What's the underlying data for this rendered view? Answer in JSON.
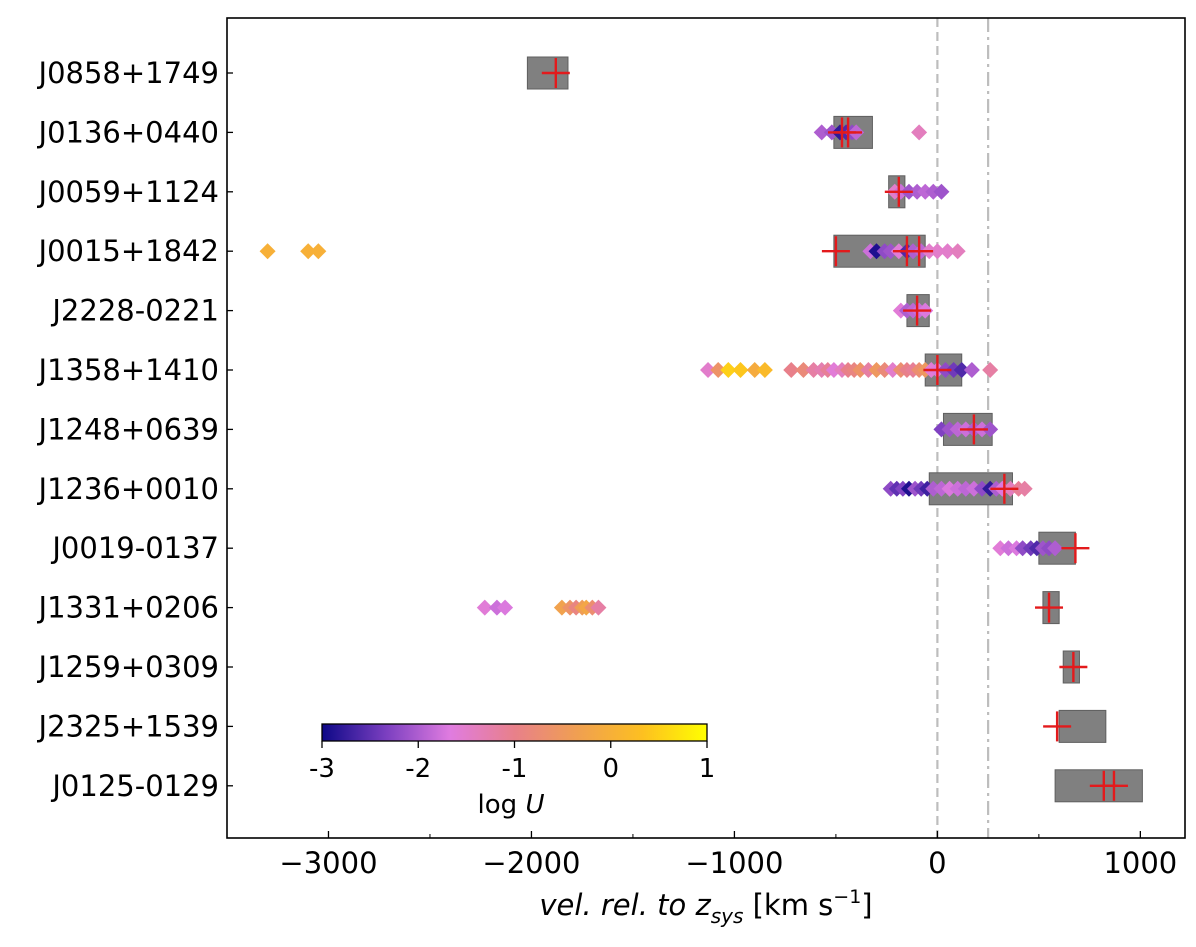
{
  "chart_data": {
    "type": "scatter",
    "xlabel_italic": "vel. rel. to z",
    "xlabel_sub": "sys",
    "xlabel_unit_pre": " [km s",
    "xlabel_unit_sup": "−1",
    "xlabel_unit_post": "]",
    "xlim": [
      -3500,
      1220
    ],
    "x_ticks": [
      -3000,
      -2000,
      -1000,
      0,
      1000
    ],
    "x_tick_labels": [
      "−3000",
      "−2000",
      "−1000",
      "0",
      "1000"
    ],
    "reference_lines": [
      {
        "x": 0,
        "style": "dashed",
        "color": "#bdbdbd"
      },
      {
        "x": 250,
        "style": "dashdot",
        "color": "#bdbdbd"
      }
    ],
    "colorbar": {
      "label_text": "log ",
      "label_var": "U",
      "range": [
        -3,
        1
      ],
      "ticks": [
        -3,
        -2,
        -1,
        0,
        1
      ],
      "tick_labels": [
        "-3",
        "-2",
        "-1",
        "0",
        "1"
      ],
      "gradient": [
        "#0d0887",
        "#7b3fc0",
        "#e07ce0",
        "#e8808a",
        "#f0a050",
        "#fdc020",
        "#ffff00"
      ]
    },
    "colors": {
      "box": "#808080",
      "box_edge": "#5f5f5f",
      "cross": "#e31a1c"
    },
    "objects": [
      {
        "name": "J0858+1749",
        "box": [
          -2020,
          -1820
        ],
        "crosses": [
          -1880
        ],
        "points": []
      },
      {
        "name": "J0136+0440",
        "box": [
          -510,
          -320
        ],
        "crosses": [
          -470,
          -440
        ],
        "points": [
          [
            -570,
            -2.0
          ],
          [
            -520,
            -2.1
          ],
          [
            -480,
            -2.8
          ],
          [
            -450,
            -2.6
          ],
          [
            -420,
            -2.2
          ],
          [
            -400,
            -1.9
          ],
          [
            -90,
            -1.4
          ]
        ]
      },
      {
        "name": "J0059+1124",
        "box": [
          -240,
          -160
        ],
        "crosses": [
          -190
        ],
        "points": [
          [
            -210,
            -1.5
          ],
          [
            -180,
            -1.8
          ],
          [
            -140,
            -2.1
          ],
          [
            -100,
            -2.0
          ],
          [
            -60,
            -1.9
          ],
          [
            -20,
            -2.0
          ],
          [
            20,
            -2.1
          ]
        ]
      },
      {
        "name": "J0015+1842",
        "box": [
          -510,
          -60
        ],
        "crosses": [
          -500,
          -150,
          -90
        ],
        "points": [
          [
            -3300,
            0.0
          ],
          [
            -3100,
            0.0
          ],
          [
            -3050,
            0.0
          ],
          [
            -330,
            -1.8
          ],
          [
            -300,
            -2.9
          ],
          [
            -260,
            -2.2
          ],
          [
            -230,
            -2.1
          ],
          [
            -190,
            -1.6
          ],
          [
            -150,
            -2.6
          ],
          [
            -120,
            -2.0
          ],
          [
            -80,
            -1.9
          ],
          [
            -40,
            -1.5
          ],
          [
            0,
            -1.5
          ],
          [
            50,
            -1.5
          ],
          [
            100,
            -1.4
          ]
        ]
      },
      {
        "name": "J2228-0221",
        "box": [
          -150,
          -40
        ],
        "crosses": [
          -100
        ],
        "points": [
          [
            -180,
            -1.6
          ],
          [
            -150,
            -2.0
          ],
          [
            -120,
            -1.9
          ],
          [
            -90,
            -1.8
          ],
          [
            -60,
            -1.7
          ]
        ]
      },
      {
        "name": "J1358+1410",
        "box": [
          -60,
          120
        ],
        "crosses": [
          0
        ],
        "points": [
          [
            -1130,
            -1.5
          ],
          [
            -1080,
            -0.6
          ],
          [
            -1030,
            0.5
          ],
          [
            -970,
            0.4
          ],
          [
            -900,
            -0.1
          ],
          [
            -850,
            0.2
          ],
          [
            -720,
            -1.0
          ],
          [
            -660,
            -0.8
          ],
          [
            -610,
            -1.2
          ],
          [
            -570,
            -1.3
          ],
          [
            -540,
            -1.1
          ],
          [
            -510,
            -1.6
          ],
          [
            -470,
            -1.4
          ],
          [
            -440,
            -1.0
          ],
          [
            -410,
            -0.9
          ],
          [
            -380,
            -0.6
          ],
          [
            -340,
            -1.2
          ],
          [
            -300,
            -0.5
          ],
          [
            -260,
            -0.8
          ],
          [
            -220,
            -1.5
          ],
          [
            -180,
            -0.7
          ],
          [
            -150,
            -1.0
          ],
          [
            -120,
            -1.1
          ],
          [
            -90,
            -0.7
          ],
          [
            -60,
            -0.5
          ],
          [
            -30,
            -1.6
          ],
          [
            0,
            -1.7
          ],
          [
            40,
            -2.2
          ],
          [
            80,
            -2.4
          ],
          [
            120,
            -2.6
          ],
          [
            170,
            -2.0
          ],
          [
            260,
            -1.2
          ]
        ]
      },
      {
        "name": "J1248+0639",
        "box": [
          30,
          270
        ],
        "crosses": [
          180
        ],
        "points": [
          [
            20,
            -2.3
          ],
          [
            60,
            -2.1
          ],
          [
            100,
            -1.9
          ],
          [
            140,
            -1.8
          ],
          [
            180,
            -2.0
          ],
          [
            220,
            -1.8
          ],
          [
            260,
            -2.1
          ]
        ]
      },
      {
        "name": "J1236+0010",
        "box": [
          -40,
          370
        ],
        "crosses": [
          330
        ],
        "points": [
          [
            -230,
            -2.2
          ],
          [
            -200,
            -2.5
          ],
          [
            -170,
            -2.3
          ],
          [
            -140,
            -2.9
          ],
          [
            -110,
            -2.1
          ],
          [
            -80,
            -2.4
          ],
          [
            -50,
            -2.7
          ],
          [
            -20,
            -2.0
          ],
          [
            20,
            -1.9
          ],
          [
            60,
            -1.7
          ],
          [
            100,
            -1.8
          ],
          [
            140,
            -1.9
          ],
          [
            180,
            -1.8
          ],
          [
            220,
            -2.2
          ],
          [
            260,
            -2.8
          ],
          [
            290,
            -2.0
          ],
          [
            320,
            -1.7
          ],
          [
            360,
            -1.4
          ],
          [
            400,
            -1.1
          ],
          [
            430,
            -1.2
          ]
        ]
      },
      {
        "name": "J0019-0137",
        "box": [
          500,
          680
        ],
        "crosses": [
          680
        ],
        "points": [
          [
            310,
            -1.6
          ],
          [
            350,
            -1.8
          ],
          [
            390,
            -1.7
          ],
          [
            420,
            -2.2
          ],
          [
            460,
            -2.4
          ],
          [
            490,
            -2.6
          ],
          [
            520,
            -2.1
          ],
          [
            550,
            -2.2
          ],
          [
            580,
            -2.0
          ]
        ]
      },
      {
        "name": "J1331+0206",
        "box": [
          520,
          600
        ],
        "crosses": [
          550
        ],
        "points": [
          [
            -2230,
            -1.6
          ],
          [
            -2170,
            -1.8
          ],
          [
            -2130,
            -1.7
          ],
          [
            -1850,
            -0.3
          ],
          [
            -1810,
            -0.6
          ],
          [
            -1780,
            -0.9
          ],
          [
            -1750,
            -0.4
          ],
          [
            -1730,
            -0.2
          ],
          [
            -1700,
            -0.7
          ],
          [
            -1670,
            -1.2
          ]
        ]
      },
      {
        "name": "J1259+0309",
        "box": [
          620,
          700
        ],
        "crosses": [
          670
        ],
        "points": []
      },
      {
        "name": "J2325+1539",
        "box": [
          600,
          830
        ],
        "crosses": [
          590
        ],
        "points": []
      },
      {
        "name": "J0125-0129",
        "box": [
          580,
          1010
        ],
        "crosses": [
          820,
          870
        ],
        "points": []
      }
    ]
  }
}
